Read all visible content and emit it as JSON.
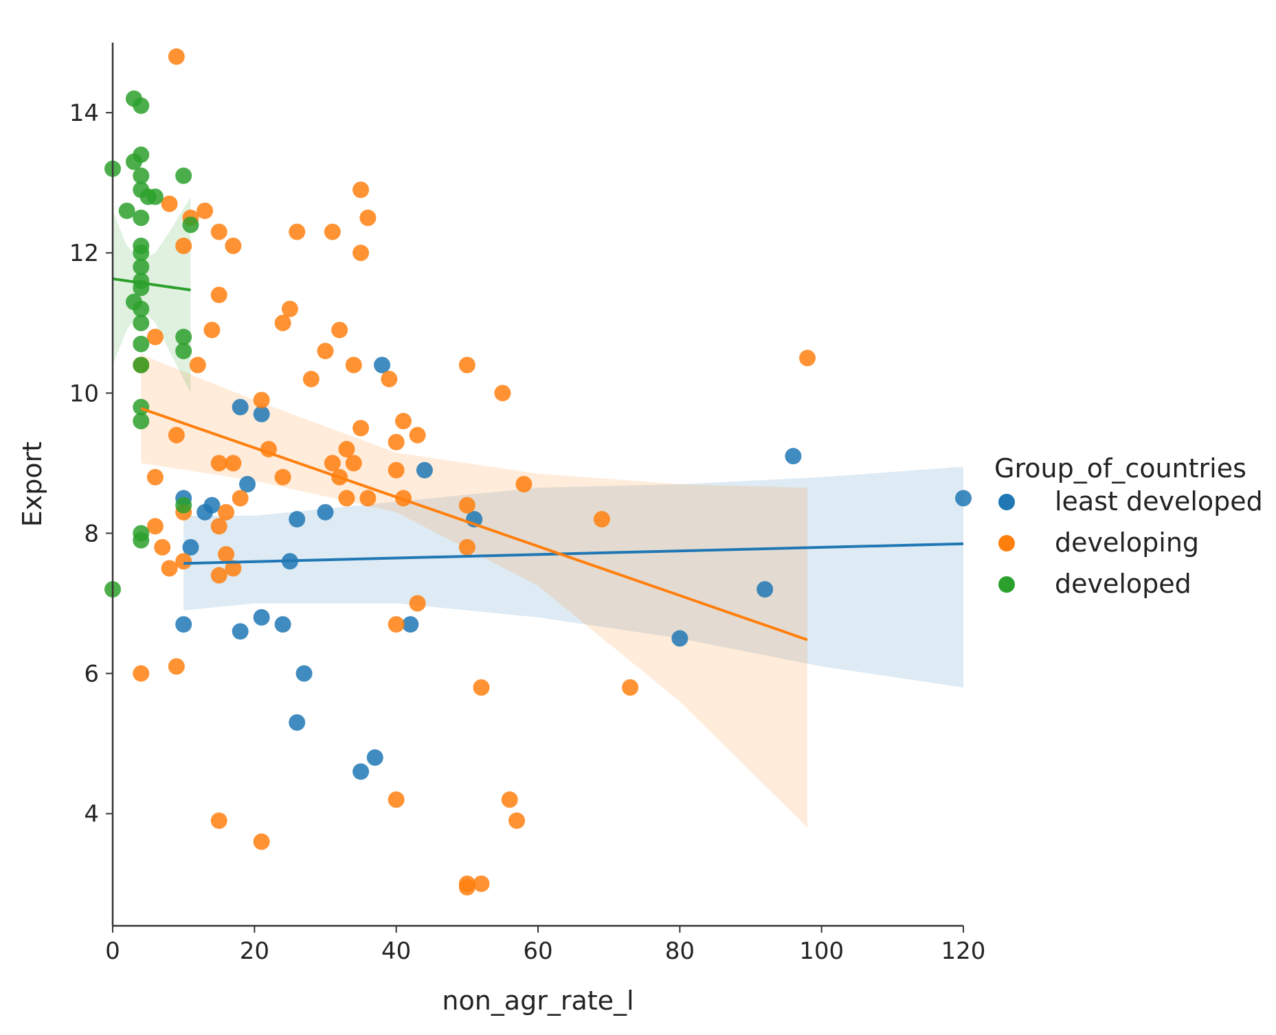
{
  "chart_data": {
    "type": "scatter",
    "xlabel": "non_agr_rate_l",
    "ylabel": "Export",
    "xlim": [
      0,
      120
    ],
    "ylim": [
      2.4,
      15.0
    ],
    "xticks": [
      0,
      20,
      40,
      60,
      80,
      100,
      120
    ],
    "yticks": [
      4,
      6,
      8,
      10,
      12,
      14
    ],
    "grid": false,
    "legend": {
      "title": "Group_of_countries",
      "placement": "right",
      "entries": [
        "least developed",
        "developing",
        "developed"
      ]
    },
    "series": [
      {
        "name": "least developed",
        "color": "#1f77b4",
        "points": [
          [
            10,
            8.5
          ],
          [
            11,
            7.8
          ],
          [
            13,
            8.3
          ],
          [
            14,
            8.4
          ],
          [
            10,
            6.7
          ],
          [
            18,
            9.8
          ],
          [
            21,
            9.7
          ],
          [
            19,
            8.7
          ],
          [
            18,
            6.6
          ],
          [
            21,
            6.8
          ],
          [
            24,
            6.7
          ],
          [
            25,
            7.6
          ],
          [
            26,
            8.2
          ],
          [
            27,
            6.0
          ],
          [
            26,
            5.3
          ],
          [
            30,
            8.3
          ],
          [
            35,
            4.6
          ],
          [
            37,
            4.8
          ],
          [
            38,
            10.4
          ],
          [
            42,
            6.7
          ],
          [
            44,
            8.9
          ],
          [
            51,
            8.2
          ],
          [
            80,
            6.5
          ],
          [
            92,
            7.2
          ],
          [
            96,
            9.1
          ],
          [
            120,
            8.5
          ]
        ],
        "fit": {
          "x": [
            10,
            120
          ],
          "y": [
            7.57,
            7.85
          ]
        },
        "ci": {
          "x": [
            10,
            20,
            40,
            60,
            80,
            100,
            120
          ],
          "upper": [
            8.25,
            8.25,
            8.45,
            8.65,
            8.7,
            8.8,
            8.95
          ],
          "lower": [
            6.9,
            7.0,
            7.0,
            6.8,
            6.5,
            6.1,
            5.8
          ]
        }
      },
      {
        "name": "developing",
        "color": "#ff7f0e",
        "points": [
          [
            9,
            14.8
          ],
          [
            4,
            10.4
          ],
          [
            6,
            10.8
          ],
          [
            8,
            12.7
          ],
          [
            10,
            12.1
          ],
          [
            11,
            12.5
          ],
          [
            13,
            12.6
          ],
          [
            15,
            12.3
          ],
          [
            17,
            12.1
          ],
          [
            15,
            11.4
          ],
          [
            14,
            10.9
          ],
          [
            12,
            10.4
          ],
          [
            9,
            9.4
          ],
          [
            6,
            8.8
          ],
          [
            6,
            8.1
          ],
          [
            7,
            7.8
          ],
          [
            8,
            7.5
          ],
          [
            10,
            7.6
          ],
          [
            10,
            8.3
          ],
          [
            4,
            6.0
          ],
          [
            9,
            6.1
          ],
          [
            15,
            9.0
          ],
          [
            16,
            8.3
          ],
          [
            17,
            9.0
          ],
          [
            18,
            8.5
          ],
          [
            15,
            8.1
          ],
          [
            16,
            7.7
          ],
          [
            15,
            7.4
          ],
          [
            17,
            7.5
          ],
          [
            15,
            3.9
          ],
          [
            21,
            3.6
          ],
          [
            21,
            9.9
          ],
          [
            22,
            9.2
          ],
          [
            24,
            8.8
          ],
          [
            24,
            11.0
          ],
          [
            25,
            11.2
          ],
          [
            26,
            12.3
          ],
          [
            28,
            10.2
          ],
          [
            30,
            10.6
          ],
          [
            31,
            12.3
          ],
          [
            32,
            10.9
          ],
          [
            33,
            9.2
          ],
          [
            31,
            9.0
          ],
          [
            32,
            8.8
          ],
          [
            33,
            8.5
          ],
          [
            34,
            9.0
          ],
          [
            34,
            10.4
          ],
          [
            35,
            9.5
          ],
          [
            35,
            12.9
          ],
          [
            35,
            12.0
          ],
          [
            36,
            12.5
          ],
          [
            36,
            8.5
          ],
          [
            39,
            10.2
          ],
          [
            40,
            9.3
          ],
          [
            41,
            9.6
          ],
          [
            40,
            8.9
          ],
          [
            41,
            8.5
          ],
          [
            43,
            9.4
          ],
          [
            40,
            6.7
          ],
          [
            43,
            7.0
          ],
          [
            40,
            4.2
          ],
          [
            50,
            10.4
          ],
          [
            50,
            8.4
          ],
          [
            50,
            7.8
          ],
          [
            50,
            3.0
          ],
          [
            50,
            2.95
          ],
          [
            52,
            3.0
          ],
          [
            52,
            5.8
          ],
          [
            55,
            10.0
          ],
          [
            56,
            4.2
          ],
          [
            57,
            3.9
          ],
          [
            58,
            8.7
          ],
          [
            69,
            8.2
          ],
          [
            73,
            5.8
          ],
          [
            98,
            10.5
          ]
        ],
        "fit": {
          "x": [
            4,
            98
          ],
          "y": [
            9.78,
            6.48
          ]
        },
        "ci": {
          "x": [
            4,
            20,
            40,
            60,
            80,
            98
          ],
          "upper": [
            10.55,
            9.9,
            9.15,
            8.85,
            8.7,
            8.65
          ],
          "lower": [
            9.0,
            8.75,
            8.3,
            7.25,
            5.6,
            3.8
          ]
        }
      },
      {
        "name": "developed",
        "color": "#2ca02c",
        "points": [
          [
            0,
            13.2
          ],
          [
            0,
            7.2
          ],
          [
            2,
            12.6
          ],
          [
            3,
            14.2
          ],
          [
            3,
            13.3
          ],
          [
            3,
            11.3
          ],
          [
            4,
            14.1
          ],
          [
            4,
            13.4
          ],
          [
            4,
            13.1
          ],
          [
            4,
            12.9
          ],
          [
            4,
            12.5
          ],
          [
            4,
            12.1
          ],
          [
            4,
            11.8
          ],
          [
            4,
            11.6
          ],
          [
            4,
            11.2
          ],
          [
            4,
            11.0
          ],
          [
            4,
            10.7
          ],
          [
            4,
            10.4
          ],
          [
            4,
            9.8
          ],
          [
            4,
            9.6
          ],
          [
            4,
            8.0
          ],
          [
            4,
            7.9
          ],
          [
            4,
            12.0
          ],
          [
            4,
            11.5
          ],
          [
            5,
            12.8
          ],
          [
            6,
            12.8
          ],
          [
            10,
            13.1
          ],
          [
            11,
            12.4
          ],
          [
            10,
            10.8
          ],
          [
            10,
            10.6
          ],
          [
            10,
            8.4
          ]
        ],
        "fit": {
          "x": [
            0,
            11
          ],
          "y": [
            11.63,
            11.47
          ]
        },
        "ci": {
          "x": [
            0,
            2,
            4,
            6,
            8,
            11
          ],
          "upper": [
            12.6,
            12.1,
            11.9,
            12.0,
            12.3,
            12.8
          ],
          "lower": [
            10.4,
            10.9,
            11.2,
            11.0,
            10.6,
            10.0
          ]
        }
      }
    ]
  }
}
